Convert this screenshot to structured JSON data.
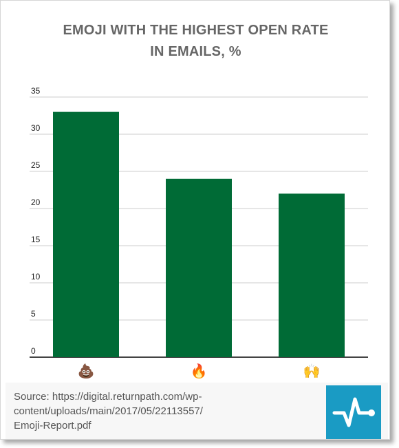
{
  "chart_data": {
    "type": "bar",
    "title_lines": [
      "EMOJI WITH THE HIGHEST OPEN RATE",
      "IN EMAILS, %"
    ],
    "categories": [
      "💩",
      "🔥",
      "🙌"
    ],
    "category_icons": [
      "pile-of-poo-icon",
      "fire-icon",
      "raised-hands-icon"
    ],
    "values": [
      33,
      24,
      22
    ],
    "ylim": [
      0,
      35
    ],
    "yticks": [
      0,
      5,
      10,
      15,
      20,
      25,
      30,
      35
    ],
    "grid": true,
    "legend": "none"
  },
  "colors": {
    "bar": "#006b36",
    "grid": "#cccccc",
    "title": "#666666",
    "logo_bg": "#1a9bc4"
  },
  "footer": {
    "source_lines": [
      "Source: https://digital.returnpath.com/wp-",
      "content/uploads/main/2017/05/22113557/",
      "Emoji-Report.pdf"
    ],
    "logo_icon": "pulse-line-icon"
  }
}
